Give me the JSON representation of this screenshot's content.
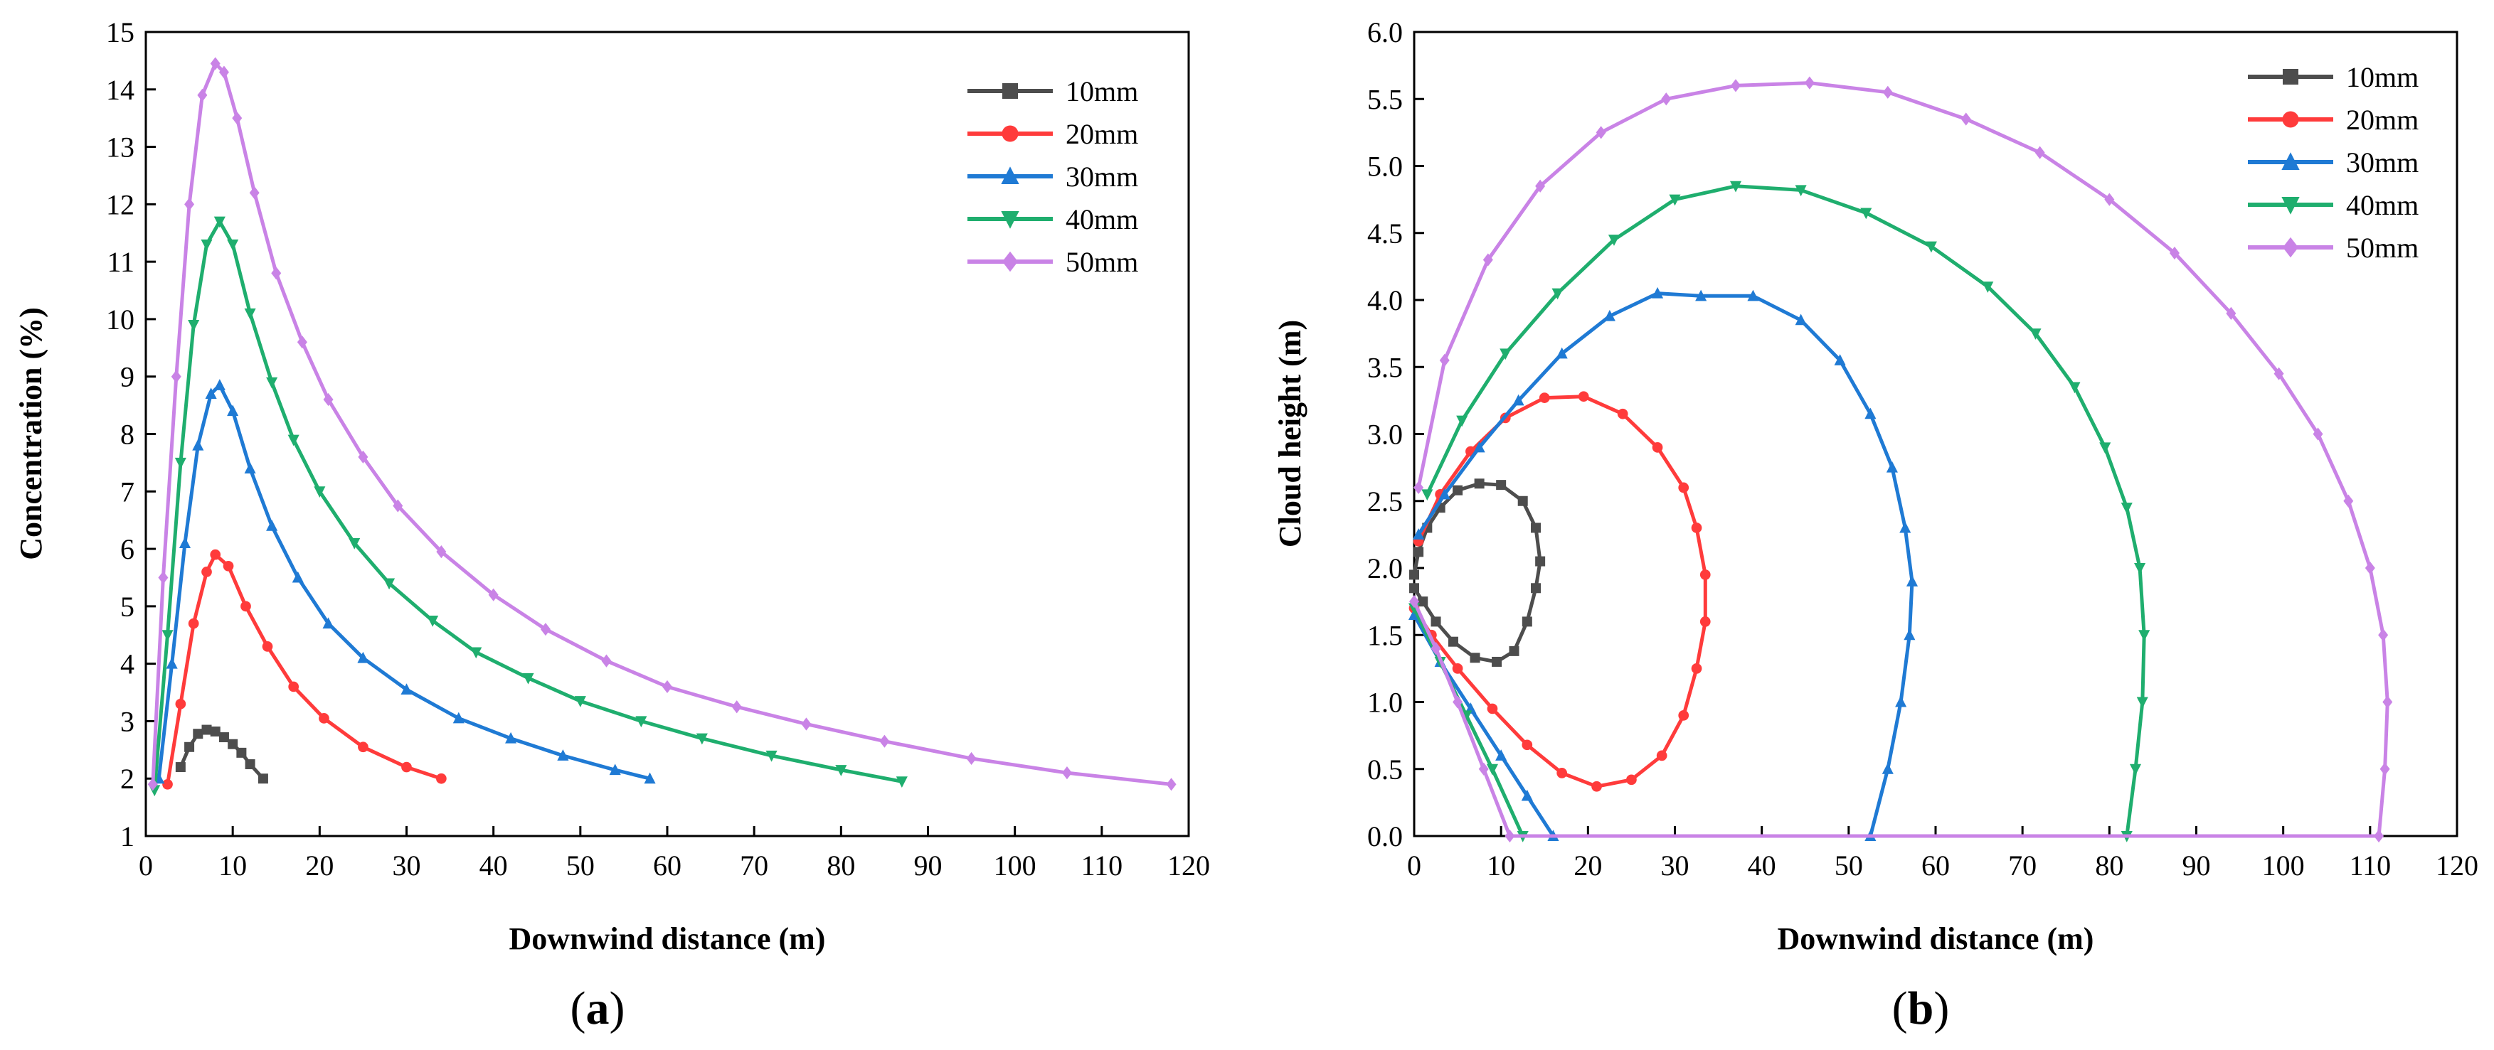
{
  "chart_data": [
    {
      "type": "line",
      "panel_label": "(a)",
      "title": "",
      "xlabel": "Downwind distance (m)",
      "ylabel": "Concentration (%)",
      "xlim": [
        0,
        120
      ],
      "ylim": [
        1,
        15
      ],
      "x_ticks": [
        "0",
        "10",
        "20",
        "30",
        "40",
        "50",
        "60",
        "70",
        "80",
        "90",
        "100",
        "110",
        "120"
      ],
      "y_ticks": [
        "1",
        "2",
        "3",
        "4",
        "5",
        "6",
        "7",
        "8",
        "9",
        "10",
        "11",
        "12",
        "13",
        "14",
        "15"
      ],
      "legend_position": "top-right",
      "grid": false,
      "series": [
        {
          "name": "10mm",
          "color": "#4d4d4d",
          "marker": "square",
          "x": [
            4.0,
            5.0,
            6.0,
            7.0,
            8.0,
            9.0,
            10.0,
            11.0,
            12.0,
            13.5
          ],
          "y": [
            2.2,
            2.55,
            2.78,
            2.85,
            2.82,
            2.72,
            2.6,
            2.45,
            2.25,
            2.0
          ]
        },
        {
          "name": "20mm",
          "color": "#ff3b3b",
          "marker": "circle",
          "x": [
            2.5,
            4.0,
            5.5,
            7.0,
            8.0,
            9.5,
            11.5,
            14.0,
            17.0,
            20.5,
            25.0,
            30.0,
            34.0
          ],
          "y": [
            1.9,
            3.3,
            4.7,
            5.6,
            5.9,
            5.7,
            5.0,
            4.3,
            3.6,
            3.05,
            2.55,
            2.2,
            2.0
          ]
        },
        {
          "name": "30mm",
          "color": "#1f7ad4",
          "marker": "triangle-up",
          "x": [
            1.5,
            3.0,
            4.5,
            6.0,
            7.5,
            8.5,
            10.0,
            12.0,
            14.5,
            17.5,
            21.0,
            25.0,
            30.0,
            36.0,
            42.0,
            48.0,
            54.0,
            58.0
          ],
          "y": [
            2.0,
            4.0,
            6.1,
            7.8,
            8.7,
            8.85,
            8.4,
            7.4,
            6.4,
            5.5,
            4.7,
            4.1,
            3.55,
            3.05,
            2.7,
            2.4,
            2.15,
            2.0
          ]
        },
        {
          "name": "40mm",
          "color": "#1fae6e",
          "marker": "triangle-down",
          "x": [
            1.0,
            2.5,
            4.0,
            5.5,
            7.0,
            8.5,
            10.0,
            12.0,
            14.5,
            17.0,
            20.0,
            24.0,
            28.0,
            33.0,
            38.0,
            44.0,
            50.0,
            57.0,
            64.0,
            72.0,
            80.0,
            87.0
          ],
          "y": [
            1.8,
            4.5,
            7.5,
            9.9,
            11.3,
            11.7,
            11.3,
            10.1,
            8.9,
            7.9,
            7.0,
            6.1,
            5.4,
            4.75,
            4.2,
            3.75,
            3.35,
            3.0,
            2.7,
            2.4,
            2.15,
            1.95
          ]
        },
        {
          "name": "50mm",
          "color": "#c983e6",
          "marker": "diamond",
          "x": [
            0.8,
            2.0,
            3.5,
            5.0,
            6.5,
            8.0,
            9.0,
            10.5,
            12.5,
            15.0,
            18.0,
            21.0,
            25.0,
            29.0,
            34.0,
            40.0,
            46.0,
            53.0,
            60.0,
            68.0,
            76.0,
            85.0,
            95.0,
            106.0,
            118.0
          ],
          "y": [
            1.9,
            5.5,
            9.0,
            12.0,
            13.9,
            14.45,
            14.3,
            13.5,
            12.2,
            10.8,
            9.6,
            8.6,
            7.6,
            6.75,
            5.95,
            5.2,
            4.6,
            4.05,
            3.6,
            3.25,
            2.95,
            2.65,
            2.35,
            2.1,
            1.9
          ]
        }
      ]
    },
    {
      "type": "line",
      "panel_label": "(b)",
      "title": "",
      "xlabel": "Downwind distance (m)",
      "ylabel": "Cloud height (m)",
      "xlim": [
        0,
        120
      ],
      "ylim": [
        0,
        6
      ],
      "x_ticks": [
        "0",
        "10",
        "20",
        "30",
        "40",
        "50",
        "60",
        "70",
        "80",
        "90",
        "100",
        "110",
        "120"
      ],
      "y_ticks": [
        "0.0",
        "0.5",
        "1.0",
        "1.5",
        "2.0",
        "2.5",
        "3.0",
        "3.5",
        "4.0",
        "4.5",
        "5.0",
        "5.5",
        "6.0"
      ],
      "legend_position": "top-right",
      "grid": false,
      "series": [
        {
          "name": "10mm",
          "color": "#4d4d4d",
          "marker": "square",
          "x": [
            0.0,
            1.0,
            2.5,
            4.5,
            7.0,
            9.5,
            11.5,
            13.0,
            14.0,
            14.5,
            14.0,
            12.5,
            10.0,
            7.5,
            5.0,
            3.0,
            1.5,
            0.5,
            0.0
          ],
          "y": [
            1.85,
            1.75,
            1.6,
            1.45,
            1.33,
            1.3,
            1.38,
            1.6,
            1.85,
            2.05,
            2.3,
            2.5,
            2.62,
            2.63,
            2.58,
            2.45,
            2.3,
            2.12,
            1.95
          ]
        },
        {
          "name": "20mm",
          "color": "#ff3b3b",
          "marker": "circle",
          "x": [
            0.0,
            2.0,
            5.0,
            9.0,
            13.0,
            17.0,
            21.0,
            25.0,
            28.5,
            31.0,
            32.5,
            33.5,
            33.5,
            32.5,
            31.0,
            28.0,
            24.0,
            19.5,
            15.0,
            10.5,
            6.5,
            3.0,
            0.5
          ],
          "y": [
            1.7,
            1.5,
            1.25,
            0.95,
            0.68,
            0.47,
            0.37,
            0.42,
            0.6,
            0.9,
            1.25,
            1.6,
            1.95,
            2.3,
            2.6,
            2.9,
            3.15,
            3.28,
            3.27,
            3.12,
            2.87,
            2.55,
            2.2
          ]
        },
        {
          "name": "30mm",
          "color": "#1f7ad4",
          "marker": "triangle-up",
          "x": [
            0.0,
            3.0,
            6.5,
            10.0,
            13.0,
            16.0,
            52.5,
            54.5,
            56.0,
            57.0,
            57.3,
            56.5,
            55.0,
            52.5,
            49.0,
            44.5,
            39.0,
            33.0,
            28.0,
            22.5,
            17.0,
            12.0,
            7.5,
            3.5,
            0.5
          ],
          "y": [
            1.65,
            1.3,
            0.95,
            0.6,
            0.3,
            0.0,
            0.0,
            0.5,
            1.0,
            1.5,
            1.9,
            2.3,
            2.75,
            3.15,
            3.55,
            3.85,
            4.03,
            4.03,
            4.05,
            3.88,
            3.6,
            3.25,
            2.9,
            2.55,
            2.25
          ]
        },
        {
          "name": "40mm",
          "color": "#1fae6e",
          "marker": "triangle-down",
          "x": [
            0.0,
            3.0,
            6.0,
            9.0,
            12.5,
            82.0,
            83.0,
            83.8,
            84.0,
            83.5,
            82.0,
            79.5,
            76.0,
            71.5,
            66.0,
            59.5,
            52.0,
            44.5,
            37.0,
            30.0,
            23.0,
            16.5,
            10.5,
            5.5,
            1.5
          ],
          "y": [
            1.7,
            1.3,
            0.9,
            0.5,
            0.0,
            0.0,
            0.5,
            1.0,
            1.5,
            2.0,
            2.45,
            2.9,
            3.35,
            3.75,
            4.1,
            4.4,
            4.65,
            4.82,
            4.85,
            4.75,
            4.45,
            4.05,
            3.6,
            3.1,
            2.55
          ]
        },
        {
          "name": "50mm",
          "color": "#c983e6",
          "marker": "diamond",
          "x": [
            0.0,
            2.5,
            5.0,
            8.0,
            11.0,
            111.0,
            111.7,
            112.0,
            111.5,
            110.0,
            107.5,
            104.0,
            99.5,
            94.0,
            87.5,
            80.0,
            72.0,
            63.5,
            54.5,
            45.5,
            37.0,
            29.0,
            21.5,
            14.5,
            8.5,
            3.5,
            0.5
          ],
          "y": [
            1.75,
            1.4,
            1.0,
            0.5,
            0.0,
            0.0,
            0.5,
            1.0,
            1.5,
            2.0,
            2.5,
            3.0,
            3.45,
            3.9,
            4.35,
            4.75,
            5.1,
            5.35,
            5.55,
            5.62,
            5.6,
            5.5,
            5.25,
            4.85,
            4.3,
            3.55,
            2.6
          ]
        }
      ]
    }
  ]
}
